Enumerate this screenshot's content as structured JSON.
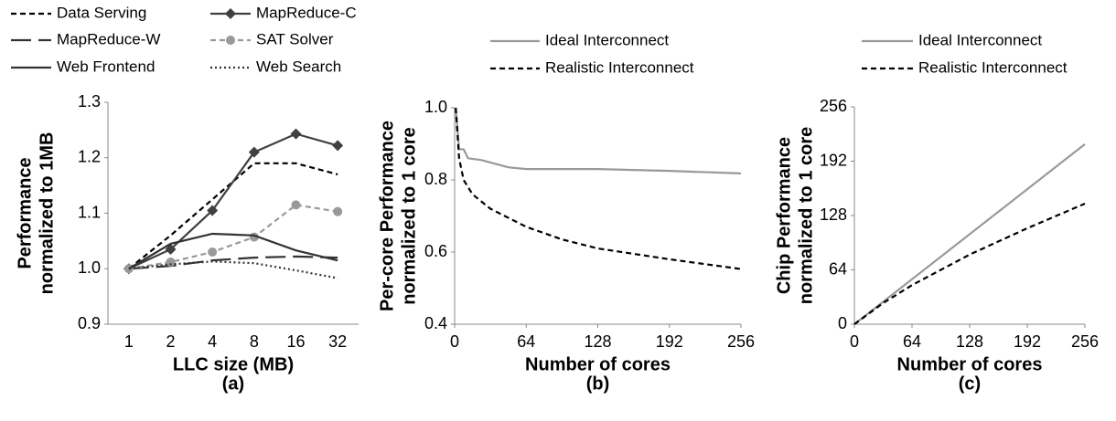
{
  "chart_data": [
    {
      "type": "line",
      "categories": [
        "1",
        "2",
        "4",
        "8",
        "16",
        "32"
      ],
      "ylabel": [
        "Performance",
        "normalized to 1MB"
      ],
      "xlabel": "LLC size (MB)",
      "caption": "(a)",
      "ylim": [
        0.9,
        1.3
      ],
      "yticks": [
        0.9,
        {
          "value": 1,
          "label": "1.0"
        },
        1.1,
        1.2,
        1.3
      ],
      "grid": false,
      "series": [
        {
          "name": "Data Serving",
          "color": "#000000",
          "style": "dashed",
          "values": [
            1.0,
            1.06,
            1.125,
            1.19,
            1.19,
            1.17
          ]
        },
        {
          "name": "MapReduce-C",
          "color": "#404040",
          "style": "solid",
          "marker": "diamond",
          "values": [
            1.0,
            1.035,
            1.105,
            1.21,
            1.243,
            1.222
          ]
        },
        {
          "name": "MapReduce-W",
          "color": "#333333",
          "style": "longdash",
          "values": [
            1.0,
            1.005,
            1.015,
            1.02,
            1.022,
            1.02
          ]
        },
        {
          "name": "SAT Solver",
          "color": "#999999",
          "style": "dashed",
          "marker": "circle",
          "values": [
            1.0,
            1.012,
            1.03,
            1.057,
            1.115,
            1.103
          ]
        },
        {
          "name": "Web Frontend",
          "color": "#333333",
          "style": "solid",
          "values": [
            1.0,
            1.045,
            1.063,
            1.06,
            1.033,
            1.015
          ]
        },
        {
          "name": "Web Search",
          "color": "#333333",
          "style": "dotted",
          "values": [
            1.0,
            1.008,
            1.013,
            1.01,
            0.997,
            0.983
          ]
        }
      ]
    },
    {
      "type": "line",
      "ylabel": [
        "Per-core  Performance",
        "normalized to 1 core"
      ],
      "xlabel": "Number of cores",
      "caption": "(b)",
      "xlim": [
        0,
        256
      ],
      "xticks": [
        0,
        64,
        128,
        192,
        256
      ],
      "ylim": [
        0.4,
        1.0
      ],
      "yticks": [
        0.4,
        0.6,
        0.8,
        {
          "value": 1,
          "label": "1.0"
        }
      ],
      "grid": false,
      "series": [
        {
          "name": "Ideal Interconnect",
          "color": "#999999",
          "style": "solid",
          "x": [
            1,
            4,
            8,
            12,
            24,
            48,
            64,
            128,
            192,
            256
          ],
          "values": [
            1.0,
            0.885,
            0.885,
            0.86,
            0.855,
            0.835,
            0.83,
            0.83,
            0.825,
            0.818
          ]
        },
        {
          "name": "Realistic Interconnect",
          "color": "#000000",
          "style": "dashed",
          "x": [
            1,
            4,
            8,
            16,
            32,
            64,
            96,
            128,
            192,
            256
          ],
          "values": [
            1.0,
            0.86,
            0.8,
            0.76,
            0.72,
            0.67,
            0.635,
            0.61,
            0.58,
            0.553
          ]
        }
      ]
    },
    {
      "type": "line",
      "ylabel": [
        "Chip  Performance",
        "normalized to 1 core"
      ],
      "xlabel": "Number of cores",
      "caption": "(c)",
      "xlim": [
        0,
        256
      ],
      "xticks": [
        0,
        64,
        128,
        192,
        256
      ],
      "ylim": [
        0,
        256
      ],
      "yticks": [
        0,
        64,
        128,
        192,
        256
      ],
      "grid": false,
      "series": [
        {
          "name": "Ideal Interconnect",
          "color": "#999999",
          "style": "solid",
          "x": [
            0,
            256
          ],
          "values": [
            0,
            212
          ]
        },
        {
          "name": "Realistic Interconnect",
          "color": "#000000",
          "style": "dashed",
          "x": [
            0,
            32,
            64,
            128,
            192,
            256
          ],
          "values": [
            0,
            25,
            46,
            82,
            113,
            142
          ]
        }
      ]
    }
  ]
}
